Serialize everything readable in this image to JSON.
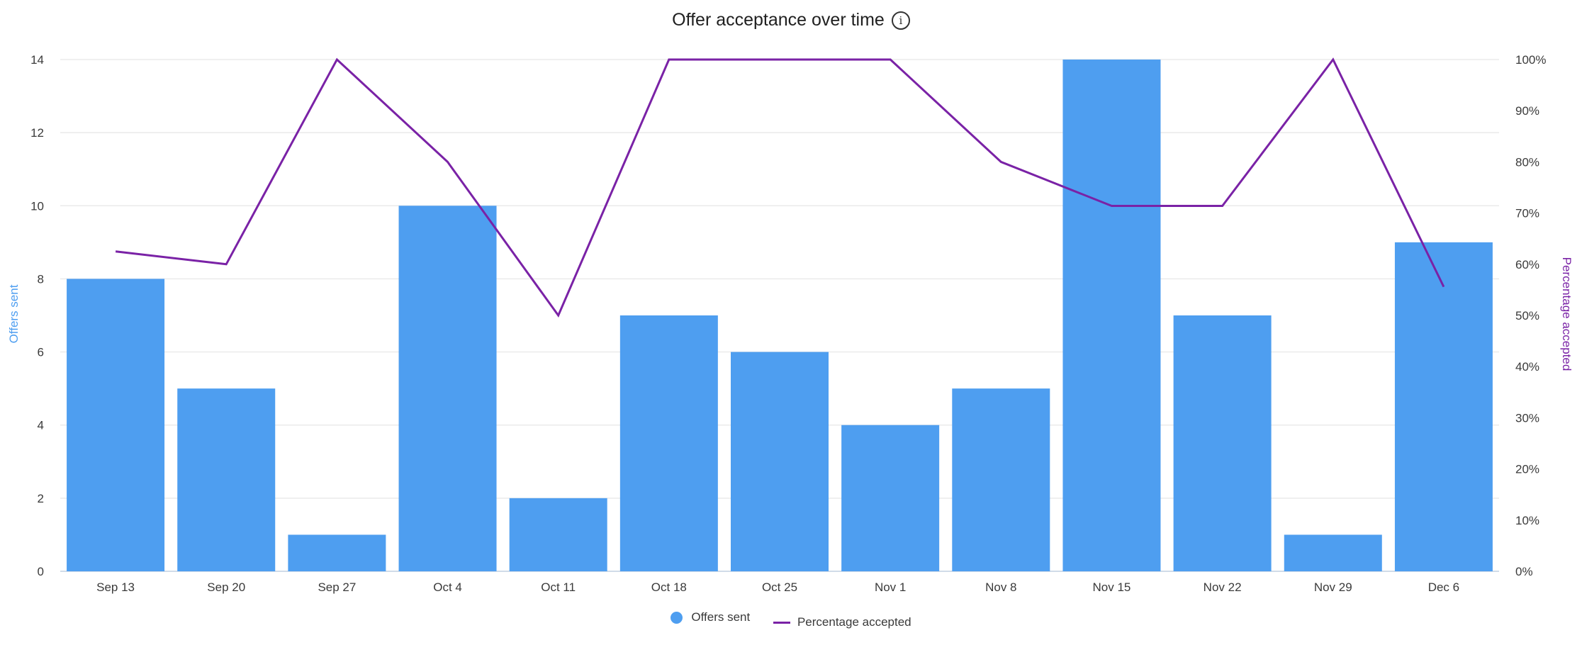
{
  "header": {
    "title": "Offer acceptance over time",
    "info_icon": "info-icon"
  },
  "colors": {
    "bars": "#4e9ef0",
    "line": "#7a22a6",
    "grid": "#e6e6e6",
    "axis": "#d0dbe8"
  },
  "legend": {
    "items": [
      {
        "label": "Offers sent",
        "icon": "circle-marker-icon"
      },
      {
        "label": "Percentage accepted",
        "icon": "line-marker-icon"
      }
    ]
  },
  "chart_data": {
    "type": "bar+line",
    "title": "Offer acceptance over time",
    "xlabel": "",
    "ylabel": "Offers sent",
    "y2label": "Percentage accepted",
    "categories": [
      "Sep 13",
      "Sep 20",
      "Sep 27",
      "Oct 4",
      "Oct 11",
      "Oct 18",
      "Oct 25",
      "Nov 1",
      "Nov 8",
      "Nov 15",
      "Nov 22",
      "Nov 29",
      "Dec 6"
    ],
    "series": [
      {
        "name": "Offers sent",
        "type": "bar",
        "axis": "left",
        "values": [
          8,
          5,
          1,
          10,
          2,
          7,
          6,
          4,
          5,
          14,
          7,
          1,
          9
        ]
      },
      {
        "name": "Percentage accepted",
        "type": "line",
        "axis": "right",
        "values": [
          62.5,
          60,
          100,
          80,
          50,
          100,
          100,
          100,
          80,
          71.4,
          71.4,
          100,
          55.6
        ]
      }
    ],
    "ylim": [
      0,
      14
    ],
    "y2lim": [
      0,
      100
    ],
    "yticks": [
      "0",
      "2",
      "4",
      "6",
      "8",
      "10",
      "12",
      "14"
    ],
    "y2ticks": [
      "0%",
      "10%",
      "20%",
      "30%",
      "40%",
      "50%",
      "60%",
      "70%",
      "80%",
      "90%",
      "100%"
    ],
    "grid": true,
    "legend_position": "bottom"
  }
}
